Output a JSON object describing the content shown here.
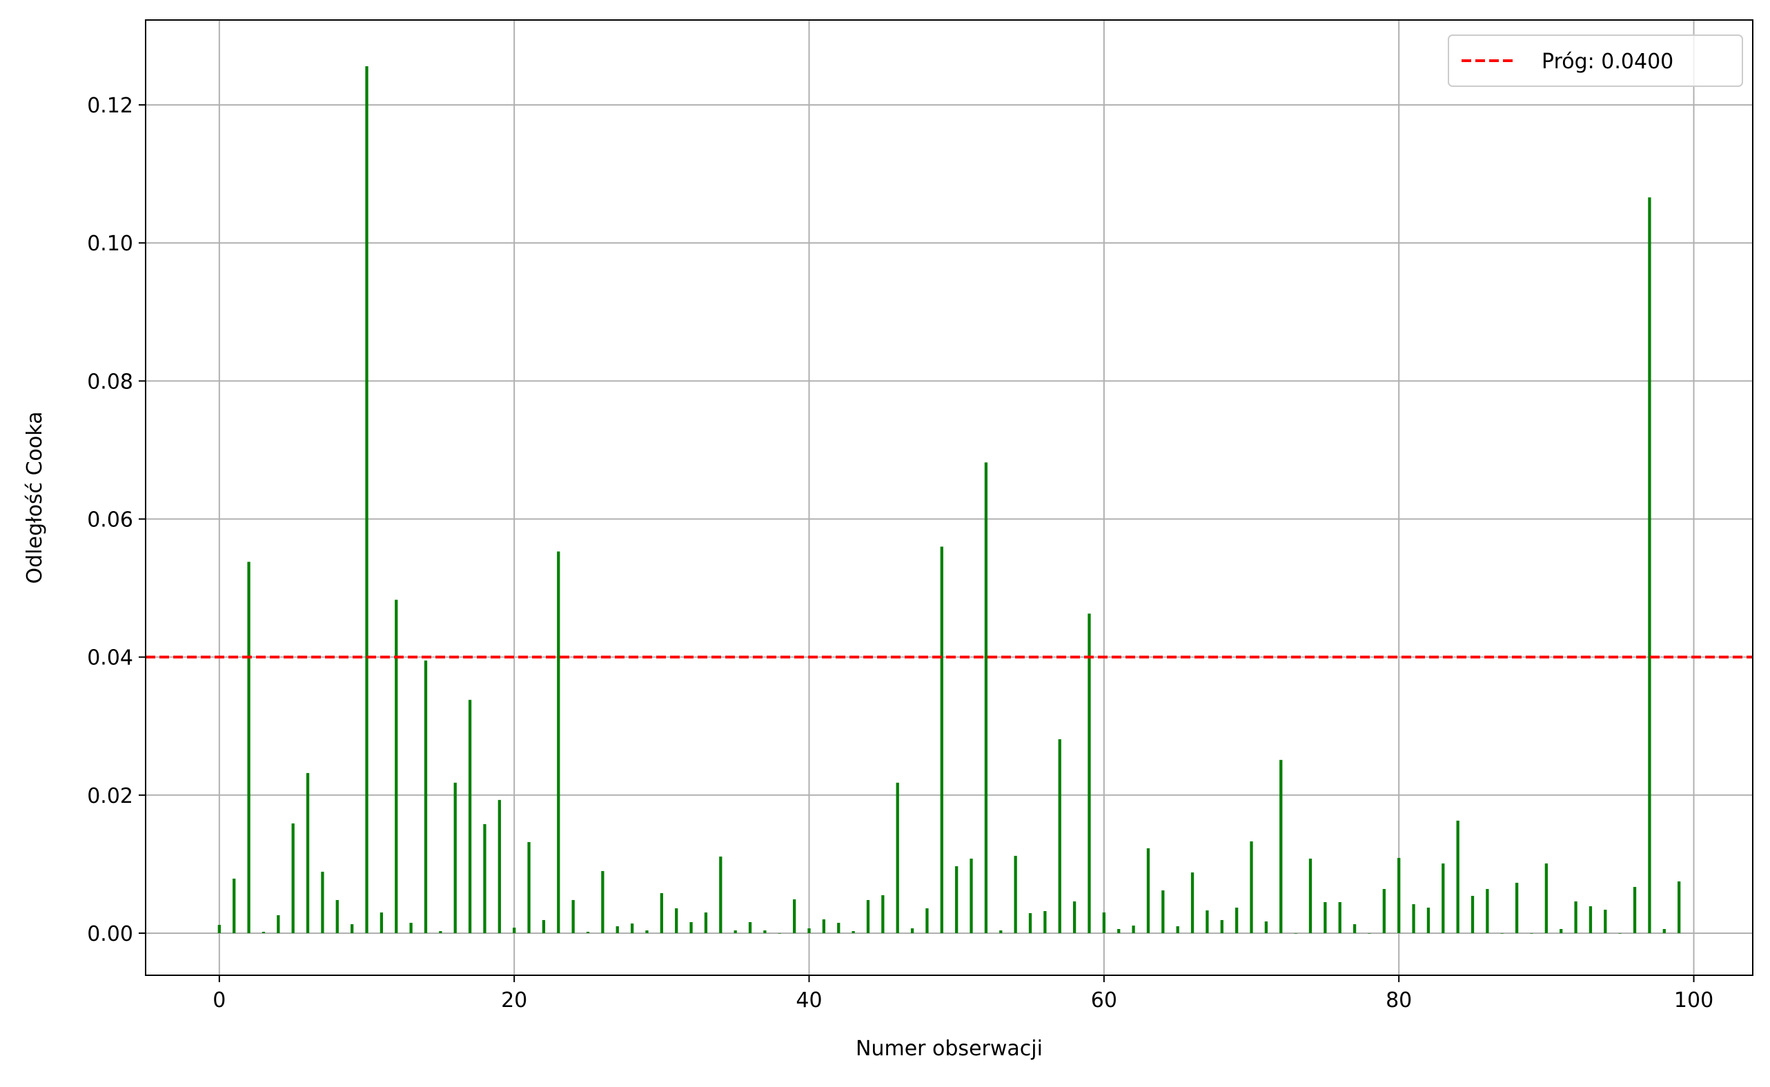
{
  "chart_data": {
    "type": "bar",
    "title": "",
    "xlabel": "Numer obserwacji",
    "ylabel": "Odległość Cooka",
    "xlim": [
      -5,
      104
    ],
    "ylim": [
      -0.0061,
      0.1323
    ],
    "xticks": [
      0,
      20,
      40,
      60,
      80,
      100
    ],
    "xtick_labels": [
      "0",
      "20",
      "40",
      "60",
      "80",
      "100"
    ],
    "yticks": [
      0.0,
      0.02,
      0.04,
      0.06,
      0.08,
      0.1,
      0.12
    ],
    "ytick_labels": [
      "0.00",
      "0.02",
      "0.04",
      "0.06",
      "0.08",
      "0.10",
      "0.12"
    ],
    "grid": true,
    "legend_position": "top-right",
    "bar_color": "#008000",
    "x": [
      0,
      1,
      2,
      3,
      4,
      5,
      6,
      7,
      8,
      9,
      10,
      11,
      12,
      13,
      14,
      15,
      16,
      17,
      18,
      19,
      20,
      21,
      22,
      23,
      24,
      25,
      26,
      27,
      28,
      29,
      30,
      31,
      32,
      33,
      34,
      35,
      36,
      37,
      38,
      39,
      40,
      41,
      42,
      43,
      44,
      45,
      46,
      47,
      48,
      49,
      50,
      51,
      52,
      53,
      54,
      55,
      56,
      57,
      58,
      59,
      60,
      61,
      62,
      63,
      64,
      65,
      66,
      67,
      68,
      69,
      70,
      71,
      72,
      73,
      74,
      75,
      76,
      77,
      78,
      79,
      80,
      81,
      82,
      83,
      84,
      85,
      86,
      87,
      88,
      89,
      90,
      91,
      92,
      93,
      94,
      95,
      96,
      97,
      98,
      99
    ],
    "values": [
      0.0012,
      0.0079,
      0.0538,
      0.0002,
      0.0026,
      0.0159,
      0.0232,
      0.0089,
      0.0048,
      0.0013,
      0.1256,
      0.003,
      0.0483,
      0.0015,
      0.0395,
      0.0003,
      0.0218,
      0.0338,
      0.0158,
      0.0193,
      0.0008,
      0.0132,
      0.0019,
      0.0553,
      0.0048,
      0.0002,
      0.009,
      0.001,
      0.0014,
      0.0004,
      0.0058,
      0.0036,
      0.0016,
      0.003,
      0.0111,
      0.0004,
      0.0016,
      0.0004,
      0.0,
      0.0049,
      0.0007,
      0.002,
      0.0015,
      0.0003,
      0.0048,
      0.0055,
      0.0218,
      0.0007,
      0.0036,
      0.056,
      0.0097,
      0.0108,
      0.0682,
      0.0004,
      0.0112,
      0.0029,
      0.0032,
      0.0281,
      0.0046,
      0.0463,
      0.003,
      0.0006,
      0.0011,
      0.0123,
      0.0062,
      0.001,
      0.0088,
      0.0033,
      0.0019,
      0.0037,
      0.0133,
      0.0017,
      0.0251,
      0.0,
      0.0108,
      0.0045,
      0.0045,
      0.0013,
      0.0,
      0.0064,
      0.0109,
      0.0042,
      0.0037,
      0.0101,
      0.0163,
      0.0054,
      0.0064,
      0.0,
      0.0073,
      0.0,
      0.0101,
      0.0006,
      0.0046,
      0.0039,
      0.0034,
      0.0,
      0.0067,
      0.1066,
      0.0006,
      0.0075
    ],
    "threshold": {
      "value": 0.04,
      "label": "Próg: 0.0400",
      "color": "#ff0000",
      "style": "dashed"
    }
  }
}
